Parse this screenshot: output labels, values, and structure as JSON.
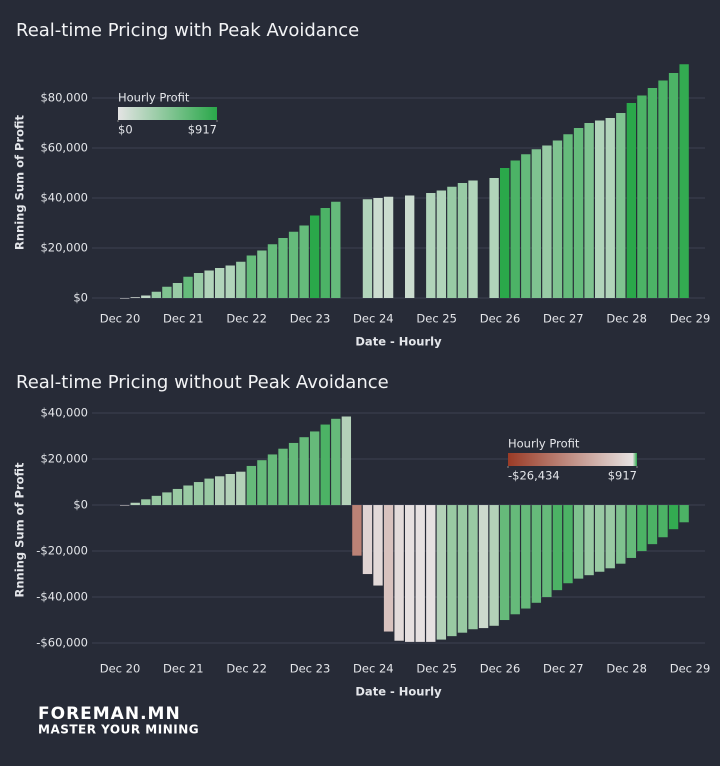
{
  "chart_data": [
    {
      "type": "bar",
      "title": "Real-time Pricing with Peak Avoidance",
      "x_label": "Date - Hourly",
      "y_label": "Rnning Sum of Profit",
      "categories": [
        "Dec 20",
        null,
        null,
        null,
        null,
        null,
        "Dec 21",
        null,
        null,
        null,
        null,
        null,
        "Dec 22",
        null,
        null,
        null,
        null,
        null,
        "Dec 23",
        null,
        null,
        null,
        null,
        null,
        "Dec 24",
        null,
        null,
        null,
        null,
        null,
        "Dec 25",
        null,
        null,
        null,
        null,
        null,
        "Dec 26",
        null,
        null,
        null,
        null,
        null,
        "Dec 27",
        null,
        null,
        null,
        null,
        null,
        "Dec 28",
        null,
        null,
        null,
        null,
        null,
        "Dec 29"
      ],
      "values": [
        0,
        300,
        1000,
        2500,
        4500,
        6000,
        8500,
        10000,
        11000,
        12000,
        13000,
        14500,
        17000,
        19000,
        21500,
        24000,
        26500,
        29000,
        33000,
        36000,
        38500,
        null,
        null,
        39500,
        40000,
        40500,
        null,
        41000,
        null,
        42000,
        43000,
        44500,
        46000,
        47000,
        null,
        48000,
        52000,
        55000,
        57500,
        59500,
        61000,
        63000,
        65500,
        68000,
        70000,
        71000,
        72000,
        74000,
        78000,
        81000,
        84000,
        87000,
        90000,
        93500,
        null
      ],
      "ylim": [
        -2800,
        95200
      ],
      "yticks": [
        {
          "value": 0,
          "label": "$0"
        },
        {
          "value": 20000,
          "label": "$20,000"
        },
        {
          "value": 40000,
          "label": "$40,000"
        },
        {
          "value": 60000,
          "label": "$60,000"
        },
        {
          "value": 80000,
          "label": "$80,000"
        }
      ],
      "grid": true,
      "colorbar": {
        "title": "Hourly Profit",
        "ticks": [
          {
            "value": 0,
            "label": "$0"
          },
          {
            "value": 917,
            "label": "$917"
          }
        ],
        "colorscale": [
          [
            0,
            "#e4e4e4"
          ],
          [
            917,
            "#2aa84a"
          ]
        ]
      }
    },
    {
      "type": "bar",
      "title": "Real-time Pricing without Peak Avoidance",
      "x_label": "Date - Hourly",
      "y_label": "Rnning Sum of Profit",
      "categories": [
        "Dec 20",
        null,
        null,
        null,
        null,
        null,
        "Dec 21",
        null,
        null,
        null,
        null,
        null,
        "Dec 22",
        null,
        null,
        null,
        null,
        null,
        "Dec 23",
        null,
        null,
        null,
        null,
        null,
        "Dec 24",
        null,
        null,
        null,
        null,
        null,
        "Dec 25",
        null,
        null,
        null,
        null,
        null,
        "Dec 26",
        null,
        null,
        null,
        null,
        null,
        "Dec 27",
        null,
        null,
        null,
        null,
        null,
        "Dec 28",
        null,
        null,
        null,
        null,
        null,
        "Dec 29"
      ],
      "values": [
        0,
        1000,
        2500,
        4000,
        5500,
        7000,
        8500,
        10000,
        11500,
        12500,
        13500,
        14500,
        17000,
        19500,
        22000,
        24500,
        27000,
        29500,
        32000,
        35000,
        37500,
        38500,
        -22000,
        -30000,
        -35000,
        -55000,
        -59000,
        -59500,
        -59500,
        -59500,
        -58500,
        -57000,
        -55500,
        -54000,
        -53500,
        -52500,
        -50000,
        -47500,
        -45000,
        -42500,
        -40000,
        -37000,
        -34000,
        -32000,
        -30500,
        -29000,
        -27500,
        -25500,
        -23000,
        -20000,
        -17000,
        -14000,
        -10500,
        -7500,
        null
      ],
      "ylim": [
        -65200,
        43500
      ],
      "yticks": [
        {
          "value": -60000,
          "label": "-$60,000"
        },
        {
          "value": -40000,
          "label": "-$40,000"
        },
        {
          "value": -20000,
          "label": "-$20,000"
        },
        {
          "value": 0,
          "label": "$0"
        },
        {
          "value": 20000,
          "label": "$20,000"
        },
        {
          "value": 40000,
          "label": "$40,000"
        }
      ],
      "grid": true,
      "colorbar": {
        "title": "Hourly Profit",
        "ticks": [
          {
            "value": -26434,
            "label": "-$26,434"
          },
          {
            "value": 917,
            "label": "$917"
          }
        ],
        "colorscale": [
          [
            -26434,
            "#9a3b26"
          ],
          [
            0,
            "#e6e1e1"
          ],
          [
            917,
            "#2aa84a"
          ]
        ]
      }
    }
  ],
  "branding": {
    "name": "FOREMAN.MN",
    "tagline": "MASTER YOUR MINING"
  }
}
